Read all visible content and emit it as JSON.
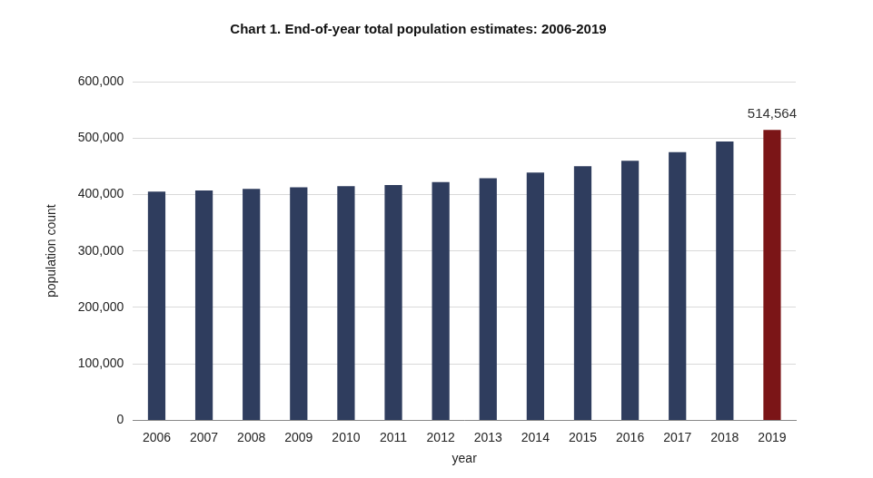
{
  "chart_data": {
    "type": "bar",
    "title": "Chart 1. End-of-year total population estimates: 2006-2019",
    "x_label": "year",
    "y_label": "population count",
    "categories": [
      "2006",
      "2007",
      "2008",
      "2009",
      "2010",
      "2011",
      "2012",
      "2013",
      "2014",
      "2015",
      "2016",
      "2017",
      "2018",
      "2019"
    ],
    "values": [
      405000,
      407000,
      410000,
      413000,
      415000,
      417000,
      422000,
      429000,
      439000,
      450000,
      460000,
      475000,
      494000,
      514564
    ],
    "value_labels": [
      null,
      null,
      null,
      null,
      null,
      null,
      null,
      null,
      null,
      null,
      null,
      null,
      null,
      "514,564"
    ],
    "colors": [
      "#2f3d5e",
      "#2f3d5e",
      "#2f3d5e",
      "#2f3d5e",
      "#2f3d5e",
      "#2f3d5e",
      "#2f3d5e",
      "#2f3d5e",
      "#2f3d5e",
      "#2f3d5e",
      "#2f3d5e",
      "#2f3d5e",
      "#2f3d5e",
      "#7b1517"
    ],
    "ylim": [
      0,
      600000
    ],
    "yticks": [
      {
        "value": 0,
        "label": "0"
      },
      {
        "value": 100000,
        "label": "100,000"
      },
      {
        "value": 200000,
        "label": "200,000"
      },
      {
        "value": 300000,
        "label": "300,000"
      },
      {
        "value": 400000,
        "label": "400,000"
      },
      {
        "value": 500000,
        "label": "500,000"
      },
      {
        "value": 600000,
        "label": "600,000"
      }
    ],
    "grid": true
  }
}
